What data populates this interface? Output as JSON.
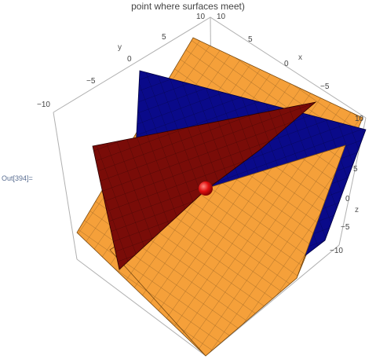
{
  "notebook": {
    "title": "point where surfaces meet)",
    "output_label": "Out[394]="
  },
  "plot": {
    "axes": {
      "x": {
        "label": "x",
        "ticks": [
          "10",
          "5",
          "0",
          "−5"
        ]
      },
      "y": {
        "label": "y",
        "ticks": [
          "10",
          "5",
          "0",
          "−5",
          "−10"
        ]
      },
      "z": {
        "label": "z",
        "ticks": [
          "10",
          "5",
          "0",
          "−5",
          "−10"
        ]
      }
    },
    "colors": {
      "plane_orange": "#f5a03a",
      "plane_blue": "#0a0a8a",
      "plane_red": "#7a0c08",
      "point": "#e01010",
      "box": "#b0b0b0"
    }
  }
}
